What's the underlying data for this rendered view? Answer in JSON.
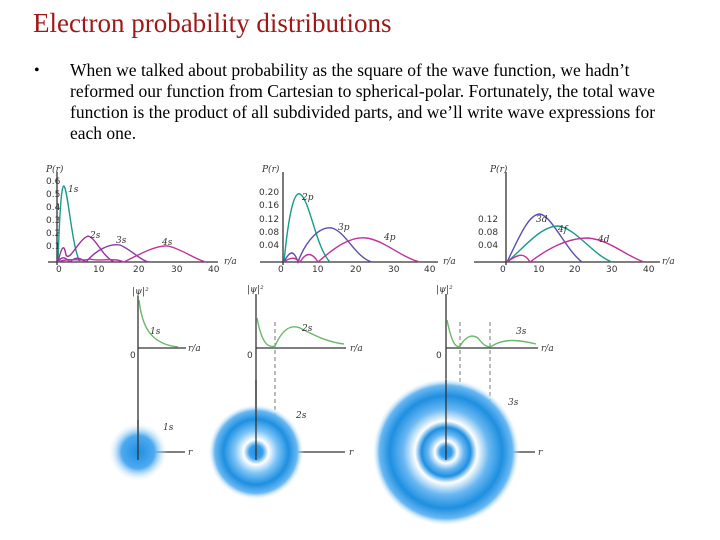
{
  "slide": {
    "title": "Electron probability distributions",
    "bullet_symbol": "•",
    "paragraph": "When we talked about probability as the square of the wave function, we hadn’t reformed our function from Cartesian to spherical-polar. Fortunately, the total wave function is the product of all subdivided parts, and we’ll write wave expressions for each one."
  },
  "colors": {
    "title": "#a01818",
    "s": "#1a9b8a",
    "p": "#c2309a",
    "d": "#5a4fb0",
    "green": "#6ab86a",
    "cloud": "#1e8fe0"
  },
  "chart_data": [
    {
      "type": "line",
      "ylabel": "P(r)",
      "xlabel": "r/a",
      "x_ticks": [
        "0",
        "10",
        "20",
        "30",
        "40"
      ],
      "y_ticks": [
        "0.6",
        "0.5",
        "0.4",
        "0.3",
        "0.2",
        "0.1",
        "0"
      ],
      "series": [
        {
          "name": "1s"
        },
        {
          "name": "2s"
        },
        {
          "name": "3s"
        },
        {
          "name": "4s"
        }
      ]
    },
    {
      "type": "line",
      "ylabel": "P(r)",
      "xlabel": "r/a",
      "x_ticks": [
        "0",
        "10",
        "20",
        "30",
        "40"
      ],
      "y_ticks": [
        "0.20",
        "0.16",
        "0.12",
        "0.08",
        "0.04",
        "0"
      ],
      "series": [
        {
          "name": "2p"
        },
        {
          "name": "3p"
        },
        {
          "name": "4p"
        }
      ]
    },
    {
      "type": "line",
      "ylabel": "P(r)",
      "xlabel": "r/a",
      "x_ticks": [
        "0",
        "10",
        "20",
        "30",
        "40"
      ],
      "y_ticks": [
        "0.12",
        "0.08",
        "0.04",
        "0"
      ],
      "series": [
        {
          "name": "3d"
        },
        {
          "name": "4f"
        },
        {
          "name": "4d"
        }
      ]
    }
  ],
  "wave_plots": [
    {
      "ylabel": "|ψ|²",
      "xlabel": "r/a",
      "zero": "0",
      "label": "1s",
      "axis_r": "r"
    },
    {
      "ylabel": "|ψ|²",
      "xlabel": "r/a",
      "zero": "0",
      "label": "2s",
      "axis_r": "r"
    },
    {
      "ylabel": "|ψ|²",
      "xlabel": "r/a",
      "zero": "0",
      "label": "3s",
      "axis_r": "r"
    }
  ]
}
